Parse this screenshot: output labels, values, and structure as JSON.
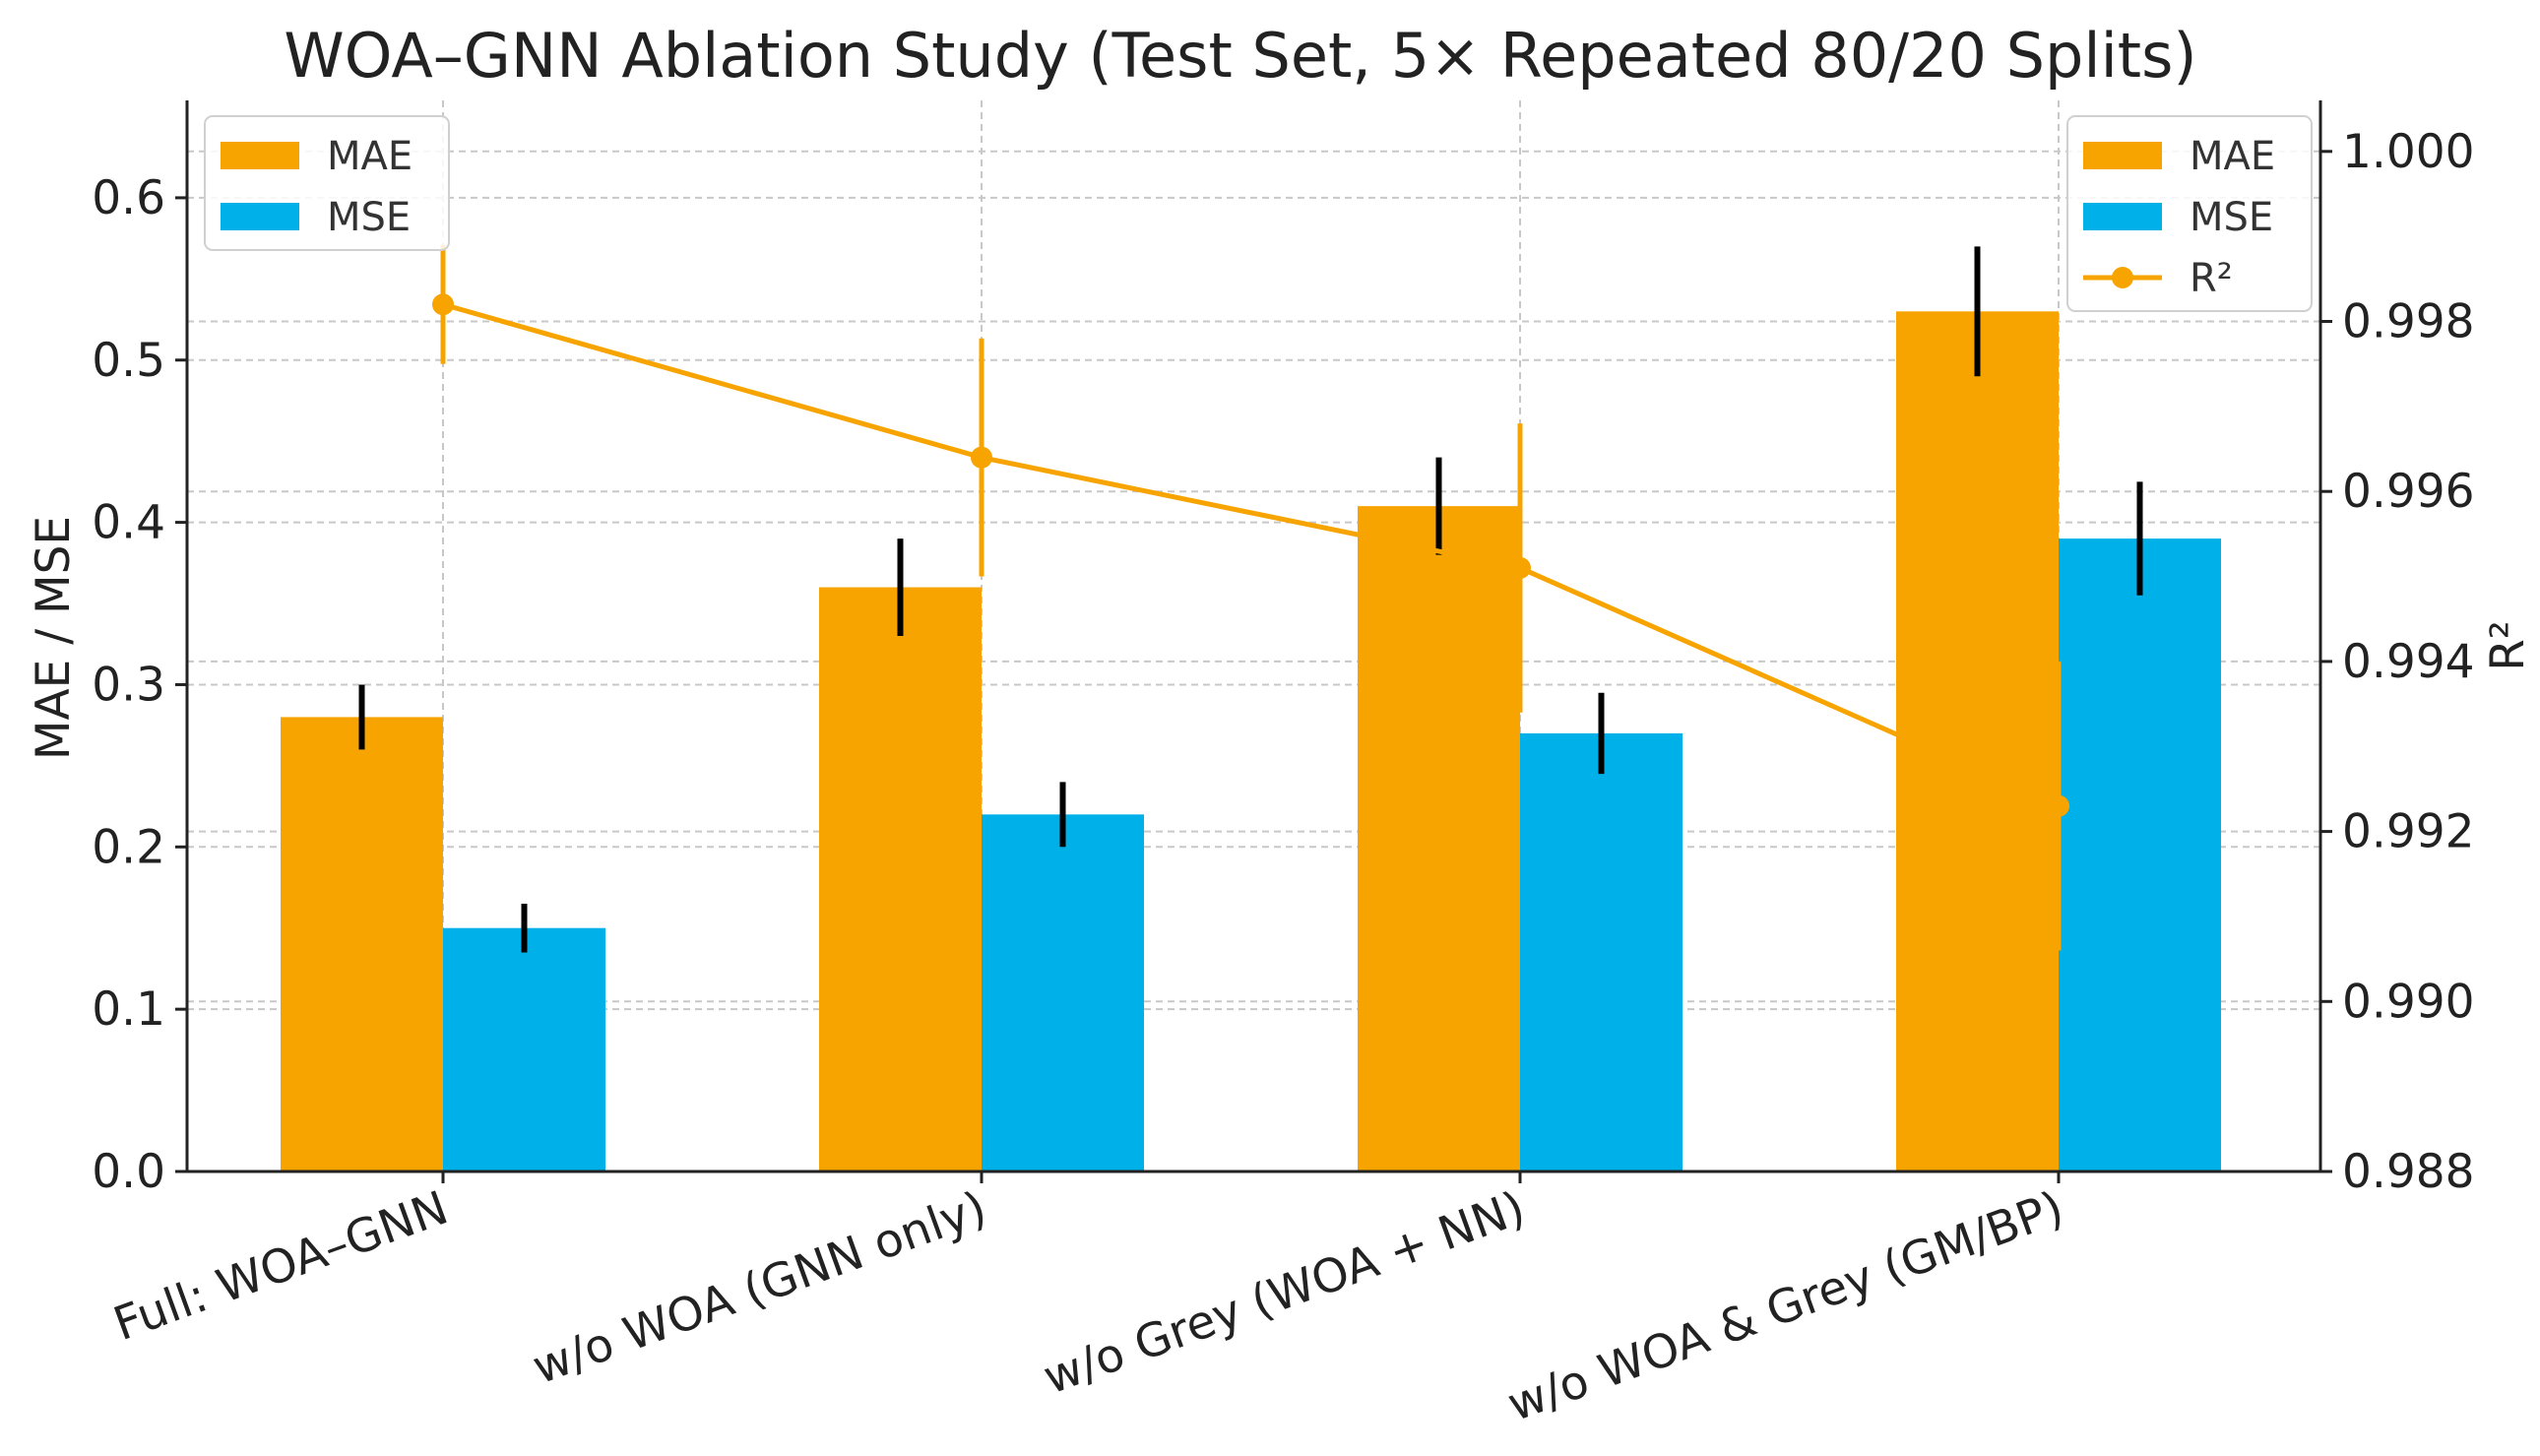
{
  "chart_data": {
    "type": "bar",
    "title": "WOA–GNN Ablation Study (Test Set, 5× Repeated 80/20 Splits)",
    "categories": [
      "Full: WOA–GNN",
      "w/o WOA (GNN only)",
      "w/o Grey (WOA + NN)",
      "w/o WOA & Grey (GM/BP)"
    ],
    "series": [
      {
        "name": "MAE",
        "axis": "left",
        "kind": "bar",
        "color": "#F7A400",
        "values": [
          0.28,
          0.36,
          0.41,
          0.53
        ],
        "errors": [
          0.02,
          0.03,
          0.03,
          0.04
        ]
      },
      {
        "name": "MSE",
        "axis": "left",
        "kind": "bar",
        "color": "#00B0E8",
        "values": [
          0.15,
          0.22,
          0.27,
          0.39
        ],
        "errors": [
          0.015,
          0.02,
          0.025,
          0.035
        ]
      },
      {
        "name": "R²",
        "axis": "right",
        "kind": "line",
        "color": "#F7A400",
        "values": [
          0.9982,
          0.9964,
          0.9951,
          0.9923
        ],
        "errors": [
          0.0007,
          0.0014,
          0.0017,
          0.0017
        ]
      }
    ],
    "ylabel": "MAE / MSE",
    "y2label": "R²",
    "ylim": [
      0,
      0.66
    ],
    "y2lim": [
      0.988,
      1.0006
    ],
    "yticks": [
      "0.0",
      "0.1",
      "0.2",
      "0.3",
      "0.4",
      "0.5",
      "0.6"
    ],
    "y2ticks": [
      "0.988",
      "0.990",
      "0.992",
      "0.994",
      "0.996",
      "0.998",
      "1.000"
    ],
    "grid": true,
    "legend_left": {
      "placement": "top-left",
      "items": [
        "MAE",
        "MSE"
      ]
    },
    "legend_right": {
      "placement": "top-right",
      "items": [
        "MAE",
        "MSE",
        "R²"
      ]
    }
  }
}
